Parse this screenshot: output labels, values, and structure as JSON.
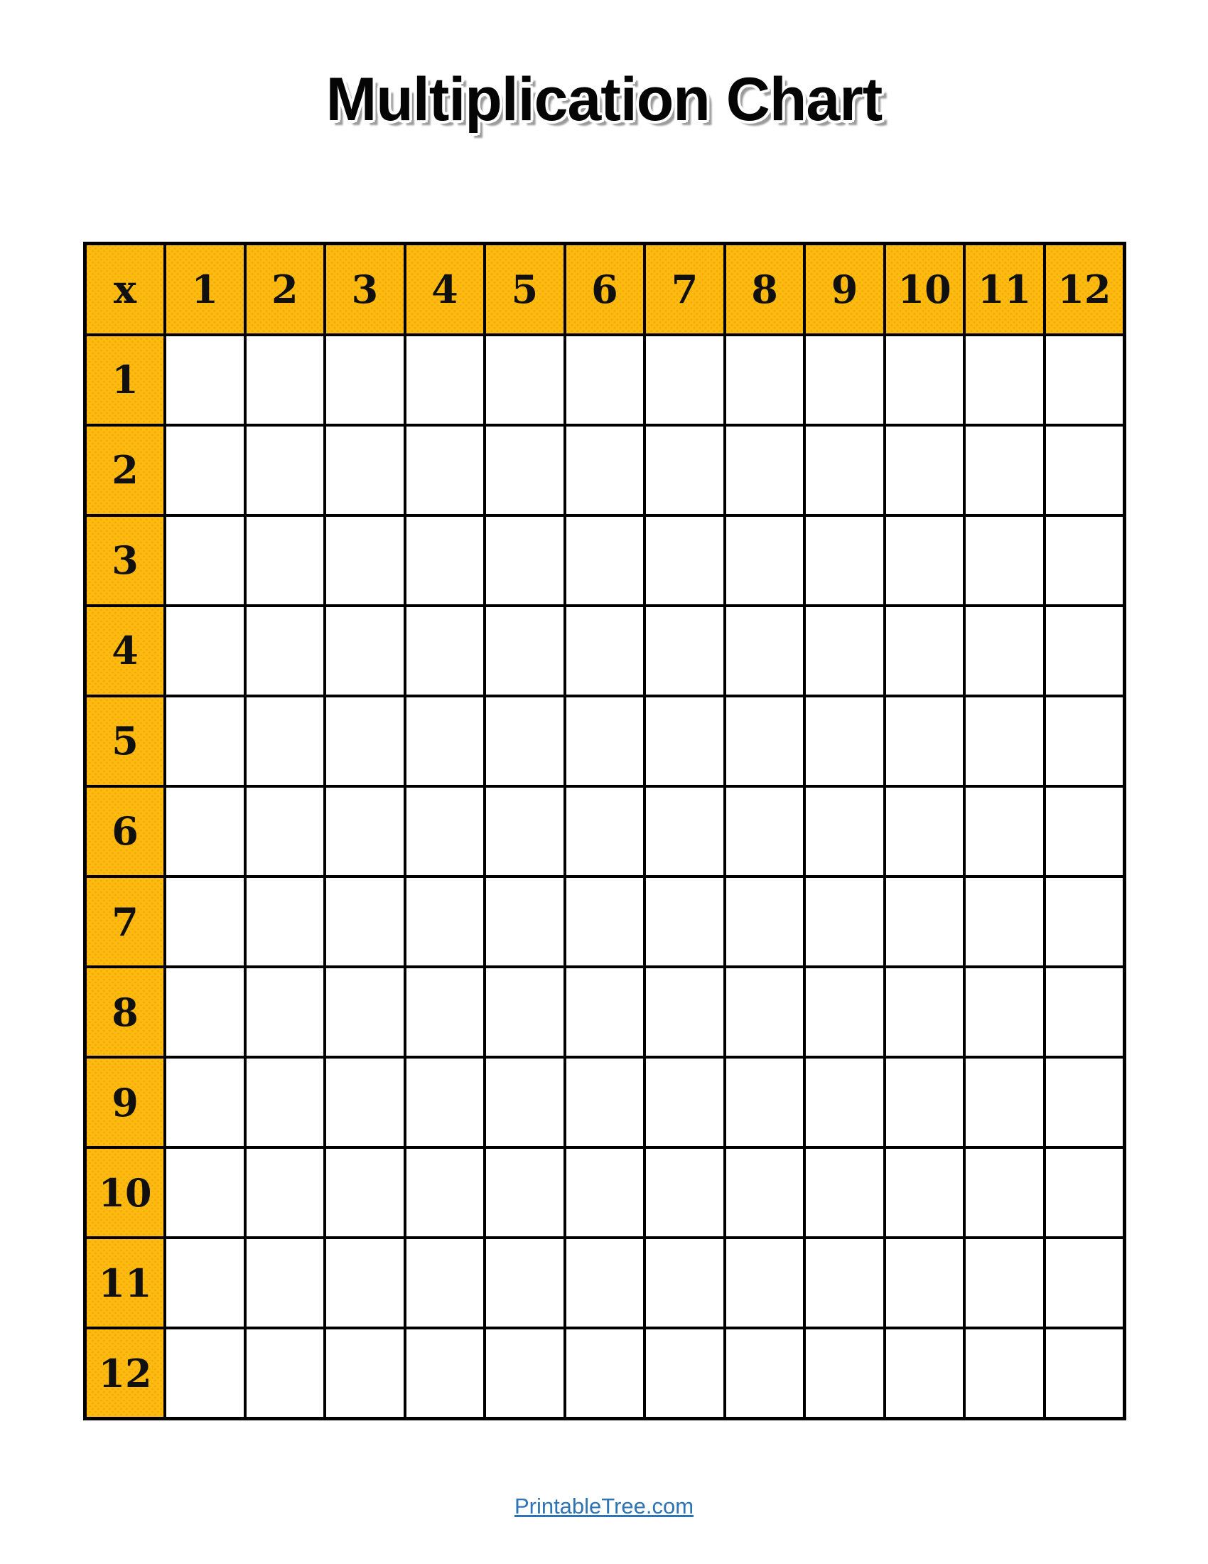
{
  "page": {
    "title": "Multiplication Chart",
    "background": "#ffffff"
  },
  "grid": {
    "corner_label": "x",
    "column_headers": [
      "1",
      "2",
      "3",
      "4",
      "5",
      "6",
      "7",
      "8",
      "9",
      "10",
      "11",
      "12"
    ],
    "row_headers": [
      "1",
      "2",
      "3",
      "4",
      "5",
      "6",
      "7",
      "8",
      "9",
      "10",
      "11",
      "12"
    ],
    "empty_cell_value": ""
  },
  "footer": {
    "link_text": "PrintableTree.com"
  },
  "colors": {
    "header_bg": "#FDBB10",
    "grid_border": "#000000",
    "link": "#2E74B5",
    "title_text": "#050505",
    "title_shadow": "#9B9B9B"
  }
}
